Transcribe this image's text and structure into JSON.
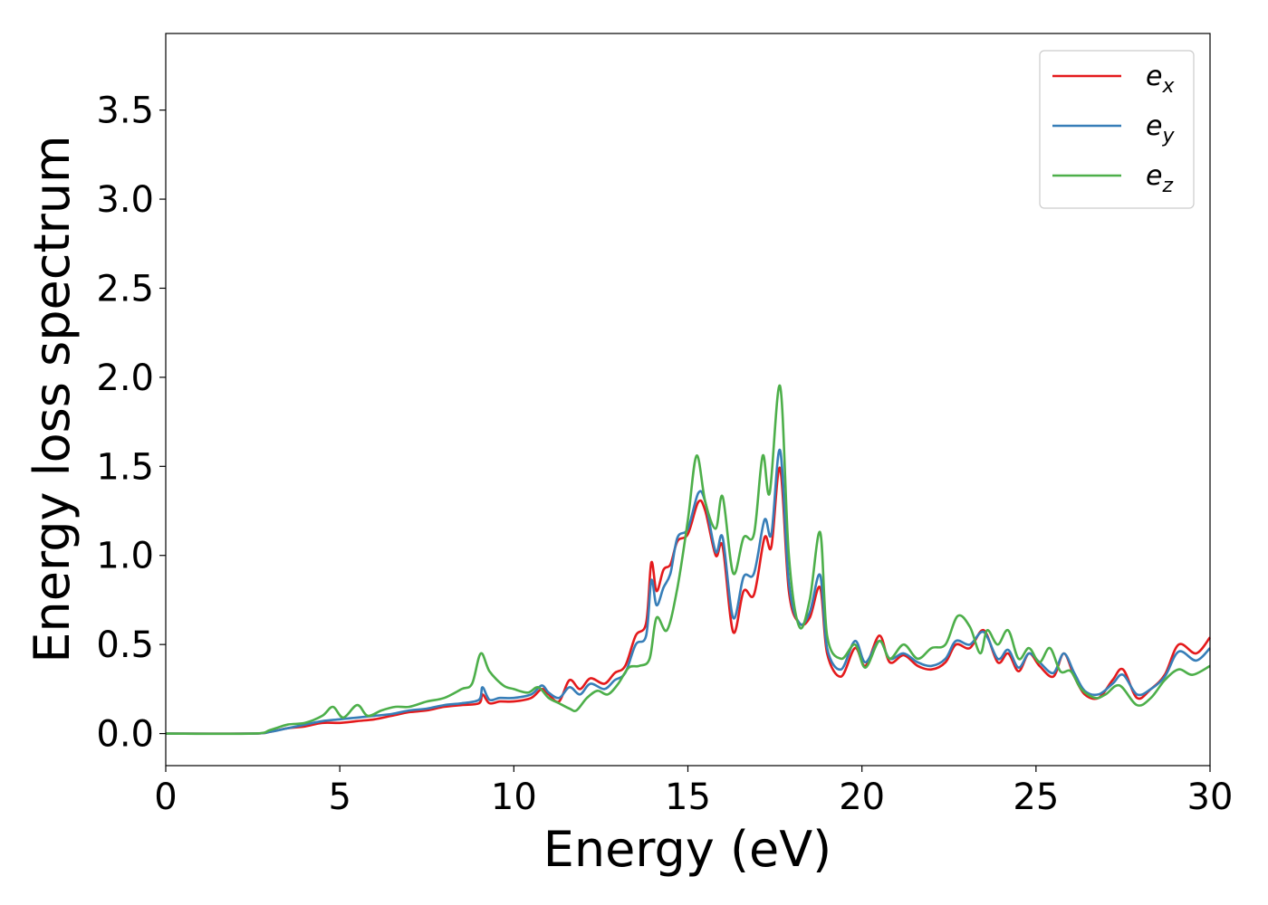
{
  "chart_data": {
    "type": "line",
    "title": "",
    "xlabel": "Energy (eV)",
    "ylabel": "Energy loss spectrum",
    "xlim": [
      0,
      30
    ],
    "ylim": [
      -0.18,
      3.93
    ],
    "xticks": [
      0,
      5,
      10,
      15,
      20,
      25,
      30
    ],
    "xtick_labels": [
      "0",
      "5",
      "10",
      "15",
      "20",
      "25",
      "30"
    ],
    "yticks": [
      0.0,
      0.5,
      1.0,
      1.5,
      2.0,
      2.5,
      3.0,
      3.5
    ],
    "ytick_labels": [
      "0.0",
      "0.5",
      "1.0",
      "1.5",
      "2.0",
      "2.5",
      "3.0",
      "3.5"
    ],
    "grid": false,
    "legend": "top-right",
    "series": [
      {
        "name": "e_x",
        "legend_base": "e",
        "legend_sub": "x",
        "color": "#e41a1c",
        "points": [
          [
            0,
            0
          ],
          [
            2.5,
            0.0
          ],
          [
            3,
            0.01
          ],
          [
            3.5,
            0.03
          ],
          [
            4,
            0.04
          ],
          [
            4.5,
            0.06
          ],
          [
            5,
            0.06
          ],
          [
            5.5,
            0.07
          ],
          [
            6,
            0.08
          ],
          [
            6.5,
            0.1
          ],
          [
            7,
            0.12
          ],
          [
            7.5,
            0.13
          ],
          [
            8,
            0.15
          ],
          [
            8.5,
            0.16
          ],
          [
            9,
            0.17
          ],
          [
            9.1,
            0.22
          ],
          [
            9.3,
            0.17
          ],
          [
            9.6,
            0.18
          ],
          [
            10,
            0.18
          ],
          [
            10.5,
            0.2
          ],
          [
            10.8,
            0.25
          ],
          [
            11,
            0.22
          ],
          [
            11.3,
            0.18
          ],
          [
            11.6,
            0.3
          ],
          [
            11.9,
            0.25
          ],
          [
            12.2,
            0.31
          ],
          [
            12.6,
            0.28
          ],
          [
            12.9,
            0.34
          ],
          [
            13.2,
            0.38
          ],
          [
            13.5,
            0.55
          ],
          [
            13.8,
            0.62
          ],
          [
            13.95,
            0.96
          ],
          [
            14.1,
            0.8
          ],
          [
            14.3,
            0.92
          ],
          [
            14.5,
            0.95
          ],
          [
            14.7,
            1.08
          ],
          [
            15.0,
            1.12
          ],
          [
            15.3,
            1.3
          ],
          [
            15.5,
            1.25
          ],
          [
            15.8,
            1.0
          ],
          [
            16.0,
            1.05
          ],
          [
            16.3,
            0.57
          ],
          [
            16.6,
            0.8
          ],
          [
            16.9,
            0.78
          ],
          [
            17.2,
            1.1
          ],
          [
            17.4,
            1.05
          ],
          [
            17.65,
            1.49
          ],
          [
            17.9,
            0.8
          ],
          [
            18.2,
            0.62
          ],
          [
            18.5,
            0.65
          ],
          [
            18.8,
            0.82
          ],
          [
            19.0,
            0.45
          ],
          [
            19.4,
            0.32
          ],
          [
            19.8,
            0.48
          ],
          [
            20.1,
            0.38
          ],
          [
            20.5,
            0.55
          ],
          [
            20.8,
            0.4
          ],
          [
            21.2,
            0.44
          ],
          [
            21.6,
            0.38
          ],
          [
            22,
            0.36
          ],
          [
            22.4,
            0.4
          ],
          [
            22.7,
            0.5
          ],
          [
            23.1,
            0.48
          ],
          [
            23.5,
            0.58
          ],
          [
            23.9,
            0.4
          ],
          [
            24.2,
            0.45
          ],
          [
            24.5,
            0.35
          ],
          [
            24.8,
            0.45
          ],
          [
            25.1,
            0.38
          ],
          [
            25.5,
            0.32
          ],
          [
            25.8,
            0.45
          ],
          [
            26.1,
            0.32
          ],
          [
            26.4,
            0.22
          ],
          [
            26.8,
            0.2
          ],
          [
            27.2,
            0.3
          ],
          [
            27.5,
            0.36
          ],
          [
            27.9,
            0.2
          ],
          [
            28.3,
            0.25
          ],
          [
            28.7,
            0.33
          ],
          [
            29.1,
            0.5
          ],
          [
            29.6,
            0.45
          ],
          [
            30,
            0.54
          ]
        ]
      },
      {
        "name": "e_y",
        "legend_base": "e",
        "legend_sub": "y",
        "color": "#377eb8",
        "points": [
          [
            0,
            0
          ],
          [
            2.5,
            0.0
          ],
          [
            3,
            0.01
          ],
          [
            3.5,
            0.03
          ],
          [
            4,
            0.05
          ],
          [
            4.5,
            0.07
          ],
          [
            5,
            0.08
          ],
          [
            5.5,
            0.09
          ],
          [
            6,
            0.1
          ],
          [
            6.5,
            0.11
          ],
          [
            7,
            0.13
          ],
          [
            7.5,
            0.14
          ],
          [
            8,
            0.16
          ],
          [
            8.5,
            0.17
          ],
          [
            9,
            0.19
          ],
          [
            9.1,
            0.26
          ],
          [
            9.3,
            0.19
          ],
          [
            9.6,
            0.2
          ],
          [
            10,
            0.2
          ],
          [
            10.5,
            0.22
          ],
          [
            10.8,
            0.27
          ],
          [
            11,
            0.23
          ],
          [
            11.3,
            0.2
          ],
          [
            11.6,
            0.26
          ],
          [
            11.9,
            0.22
          ],
          [
            12.2,
            0.28
          ],
          [
            12.6,
            0.25
          ],
          [
            12.9,
            0.3
          ],
          [
            13.2,
            0.34
          ],
          [
            13.5,
            0.5
          ],
          [
            13.8,
            0.55
          ],
          [
            13.95,
            0.86
          ],
          [
            14.1,
            0.72
          ],
          [
            14.3,
            0.82
          ],
          [
            14.5,
            0.9
          ],
          [
            14.7,
            1.1
          ],
          [
            15.0,
            1.15
          ],
          [
            15.3,
            1.35
          ],
          [
            15.5,
            1.3
          ],
          [
            15.8,
            1.02
          ],
          [
            16.0,
            1.1
          ],
          [
            16.3,
            0.65
          ],
          [
            16.6,
            0.88
          ],
          [
            16.9,
            0.9
          ],
          [
            17.2,
            1.2
          ],
          [
            17.4,
            1.12
          ],
          [
            17.65,
            1.59
          ],
          [
            17.9,
            0.85
          ],
          [
            18.2,
            0.62
          ],
          [
            18.5,
            0.68
          ],
          [
            18.8,
            0.89
          ],
          [
            19.0,
            0.48
          ],
          [
            19.4,
            0.36
          ],
          [
            19.8,
            0.52
          ],
          [
            20.1,
            0.4
          ],
          [
            20.5,
            0.52
          ],
          [
            20.8,
            0.42
          ],
          [
            21.2,
            0.45
          ],
          [
            21.6,
            0.4
          ],
          [
            22,
            0.38
          ],
          [
            22.4,
            0.42
          ],
          [
            22.7,
            0.52
          ],
          [
            23.1,
            0.5
          ],
          [
            23.5,
            0.57
          ],
          [
            23.9,
            0.42
          ],
          [
            24.2,
            0.47
          ],
          [
            24.5,
            0.37
          ],
          [
            24.8,
            0.45
          ],
          [
            25.1,
            0.4
          ],
          [
            25.5,
            0.34
          ],
          [
            25.8,
            0.45
          ],
          [
            26.1,
            0.34
          ],
          [
            26.4,
            0.24
          ],
          [
            26.8,
            0.22
          ],
          [
            27.2,
            0.28
          ],
          [
            27.5,
            0.33
          ],
          [
            27.9,
            0.22
          ],
          [
            28.3,
            0.25
          ],
          [
            28.7,
            0.32
          ],
          [
            29.1,
            0.46
          ],
          [
            29.6,
            0.41
          ],
          [
            30,
            0.48
          ]
        ]
      },
      {
        "name": "e_z",
        "legend_base": "e",
        "legend_sub": "z",
        "color": "#4daf4a",
        "points": [
          [
            0,
            0
          ],
          [
            2.5,
            0.0
          ],
          [
            3,
            0.02
          ],
          [
            3.5,
            0.05
          ],
          [
            4,
            0.06
          ],
          [
            4.5,
            0.1
          ],
          [
            4.8,
            0.15
          ],
          [
            5.1,
            0.09
          ],
          [
            5.5,
            0.16
          ],
          [
            5.8,
            0.1
          ],
          [
            6.2,
            0.13
          ],
          [
            6.6,
            0.15
          ],
          [
            7,
            0.15
          ],
          [
            7.5,
            0.18
          ],
          [
            8,
            0.2
          ],
          [
            8.5,
            0.25
          ],
          [
            8.8,
            0.28
          ],
          [
            9.05,
            0.45
          ],
          [
            9.3,
            0.35
          ],
          [
            9.7,
            0.27
          ],
          [
            10,
            0.25
          ],
          [
            10.4,
            0.23
          ],
          [
            10.7,
            0.26
          ],
          [
            11,
            0.2
          ],
          [
            11.3,
            0.17
          ],
          [
            11.6,
            0.14
          ],
          [
            11.8,
            0.13
          ],
          [
            12.1,
            0.2
          ],
          [
            12.4,
            0.24
          ],
          [
            12.7,
            0.22
          ],
          [
            13.0,
            0.28
          ],
          [
            13.3,
            0.37
          ],
          [
            13.6,
            0.38
          ],
          [
            13.9,
            0.42
          ],
          [
            14.1,
            0.65
          ],
          [
            14.4,
            0.58
          ],
          [
            14.7,
            0.82
          ],
          [
            15.0,
            1.2
          ],
          [
            15.25,
            1.56
          ],
          [
            15.5,
            1.3
          ],
          [
            15.8,
            1.15
          ],
          [
            16.0,
            1.33
          ],
          [
            16.3,
            0.9
          ],
          [
            16.6,
            1.1
          ],
          [
            16.9,
            1.12
          ],
          [
            17.15,
            1.56
          ],
          [
            17.35,
            1.35
          ],
          [
            17.65,
            1.95
          ],
          [
            17.9,
            1.0
          ],
          [
            18.2,
            0.6
          ],
          [
            18.5,
            0.75
          ],
          [
            18.8,
            1.13
          ],
          [
            19.0,
            0.55
          ],
          [
            19.4,
            0.42
          ],
          [
            19.8,
            0.5
          ],
          [
            20.1,
            0.37
          ],
          [
            20.5,
            0.52
          ],
          [
            20.8,
            0.42
          ],
          [
            21.2,
            0.5
          ],
          [
            21.6,
            0.42
          ],
          [
            22,
            0.48
          ],
          [
            22.4,
            0.5
          ],
          [
            22.75,
            0.66
          ],
          [
            23.1,
            0.6
          ],
          [
            23.4,
            0.45
          ],
          [
            23.6,
            0.58
          ],
          [
            23.9,
            0.5
          ],
          [
            24.2,
            0.58
          ],
          [
            24.5,
            0.42
          ],
          [
            24.8,
            0.48
          ],
          [
            25.1,
            0.4
          ],
          [
            25.4,
            0.48
          ],
          [
            25.7,
            0.35
          ],
          [
            26.0,
            0.35
          ],
          [
            26.3,
            0.25
          ],
          [
            26.7,
            0.2
          ],
          [
            27.0,
            0.22
          ],
          [
            27.4,
            0.27
          ],
          [
            27.9,
            0.16
          ],
          [
            28.3,
            0.2
          ],
          [
            28.7,
            0.3
          ],
          [
            29.1,
            0.36
          ],
          [
            29.5,
            0.33
          ],
          [
            30,
            0.38
          ]
        ]
      }
    ]
  }
}
